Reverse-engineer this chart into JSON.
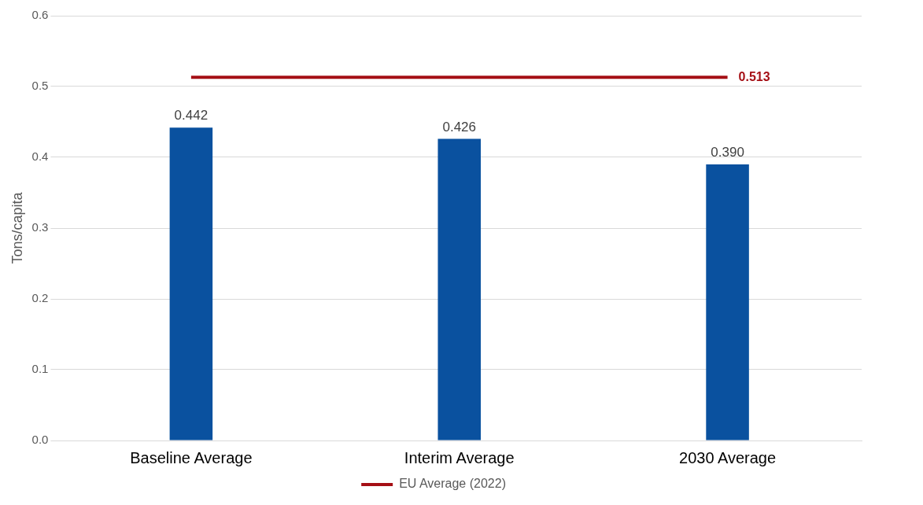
{
  "chart_data": {
    "type": "bar",
    "ylabel": "Tons/capita",
    "categories": [
      "Baseline Average",
      "Interim Average",
      "2030 Average"
    ],
    "series": [
      {
        "color": "#0a519f",
        "values": [
          0.442,
          0.426,
          0.39
        ],
        "value_labels": [
          "0.442",
          "0.426",
          "0.390"
        ]
      },
      {
        "type": "line",
        "name": "EU Average (2022)",
        "color": "#a50f15",
        "values": [
          0.513,
          0.513,
          0.513
        ],
        "value_labels": [
          null,
          null,
          "0.513"
        ],
        "marker": "none",
        "line_style": "solid"
      }
    ],
    "ylim": [
      0,
      0.6
    ],
    "yticks": [
      {
        "value": 0,
        "label": "0.0"
      },
      0.1,
      0.2,
      0.3,
      0.4,
      0.5,
      0.6
    ],
    "grid": "y",
    "legend": "bottom"
  }
}
